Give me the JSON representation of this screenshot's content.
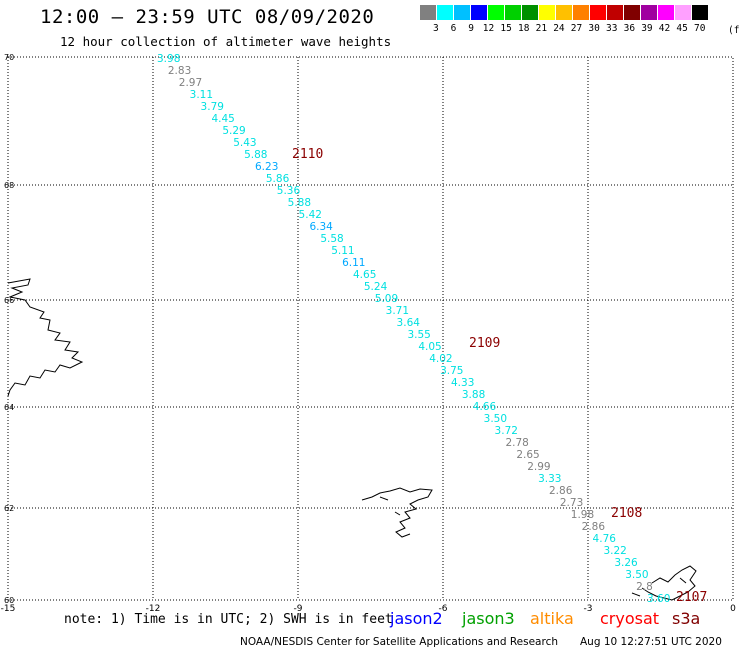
{
  "header": {
    "title": "12:00 — 23:59 UTC 08/09/2020",
    "subtitle": "12 hour collection of altimeter wave heights"
  },
  "legend": {
    "colors": [
      "#808080",
      "#00ffff",
      "#00c0ff",
      "#0000ff",
      "#00ff00",
      "#00d000",
      "#009000",
      "#ffff00",
      "#ffc000",
      "#ff8000",
      "#ff0000",
      "#c00000",
      "#800000",
      "#a000a0",
      "#ff00ff",
      "#ffa0ff",
      "#000000"
    ],
    "labels": [
      "3",
      "6",
      "9",
      "12",
      "15",
      "18",
      "21",
      "24",
      "27",
      "30",
      "33",
      "36",
      "39",
      "42",
      "45",
      "70"
    ],
    "unit": "(ft)"
  },
  "map": {
    "x_ticks": [
      "-15",
      "-12",
      "-9",
      "-6",
      "-3",
      "0"
    ],
    "y_ticks": [
      "70",
      "68",
      "66",
      "64",
      "62",
      "60"
    ]
  },
  "chart_data": {
    "type": "scatter",
    "x_range": [
      -15,
      0
    ],
    "y_range": [
      60,
      70
    ],
    "time_labels": [
      {
        "text": "2110",
        "lon": -9.1,
        "lat": 67.95
      },
      {
        "text": "2109",
        "lon": -5.7,
        "lat": 64.9
      },
      {
        "text": "2108",
        "lon": -2.5,
        "lat": 61.95
      },
      {
        "text": "2107",
        "lon": -1.1,
        "lat": 60.1
      }
    ],
    "points": [
      {
        "v": "3.98",
        "lon": -12.05,
        "lat": 69.95,
        "c": "#00e0e0"
      },
      {
        "v": "2.83",
        "lon": -11.75,
        "lat": 69.75,
        "c": "#808080"
      },
      {
        "v": "2.97",
        "lon": -11.45,
        "lat": 69.5,
        "c": "#808080"
      },
      {
        "v": "3.11",
        "lon": -11.15,
        "lat": 69.25,
        "c": "#00e0e0"
      },
      {
        "v": "3.79",
        "lon": -10.85,
        "lat": 69.0,
        "c": "#00e0e0"
      },
      {
        "v": "4.45",
        "lon": -10.55,
        "lat": 68.75,
        "c": "#00e0e0"
      },
      {
        "v": "5.29",
        "lon": -10.25,
        "lat": 68.5,
        "c": "#00e0e0"
      },
      {
        "v": "5.43",
        "lon": -9.95,
        "lat": 68.25,
        "c": "#00e0e0"
      },
      {
        "v": "5.88",
        "lon": -9.65,
        "lat": 68.0,
        "c": "#00e0e0"
      },
      {
        "v": "6.23",
        "lon": -9.35,
        "lat": 67.75,
        "c": "#00a8ff"
      },
      {
        "v": "5.86",
        "lon": -9.05,
        "lat": 67.5,
        "c": "#00e0e0"
      },
      {
        "v": "5.36",
        "lon": -8.75,
        "lat": 67.25,
        "c": "#00e0e0"
      },
      {
        "v": "5.88",
        "lon": -8.45,
        "lat": 67.0,
        "c": "#00e0e0"
      },
      {
        "v": "5.42",
        "lon": -8.15,
        "lat": 66.75,
        "c": "#00e0e0"
      },
      {
        "v": "6.34",
        "lon": -7.85,
        "lat": 66.5,
        "c": "#00a8ff"
      },
      {
        "v": "5.58",
        "lon": -7.55,
        "lat": 66.25,
        "c": "#00e0e0"
      },
      {
        "v": "5.11",
        "lon": -7.25,
        "lat": 66.0,
        "c": "#00e0e0"
      },
      {
        "v": "6.11",
        "lon": -6.95,
        "lat": 65.75,
        "c": "#00a8ff"
      },
      {
        "v": "4.65",
        "lon": -6.65,
        "lat": 65.5,
        "c": "#00e0e0"
      },
      {
        "v": "5.24",
        "lon": -6.35,
        "lat": 65.25,
        "c": "#00e0e0"
      },
      {
        "v": "5.09",
        "lon": -6.05,
        "lat": 65.0,
        "c": "#00e0e0"
      },
      {
        "v": "3.71",
        "lon": -5.75,
        "lat": 64.75,
        "c": "#00e0e0"
      },
      {
        "v": "3.64",
        "lon": -5.45,
        "lat": 64.5,
        "c": "#00e0e0"
      },
      {
        "v": "3.55",
        "lon": -5.15,
        "lat": 64.25,
        "c": "#00e0e0"
      },
      {
        "v": "4.05",
        "lon": -4.85,
        "lat": 64.0,
        "c": "#00e0e0"
      },
      {
        "v": "4.02",
        "lon": -4.55,
        "lat": 63.75,
        "c": "#00e0e0"
      },
      {
        "v": "3.75",
        "lon": -4.25,
        "lat": 63.5,
        "c": "#00e0e0"
      },
      {
        "v": "4.33",
        "lon": -3.95,
        "lat": 63.25,
        "c": "#00e0e0"
      },
      {
        "v": "3.88",
        "lon": -3.65,
        "lat": 63.0,
        "c": "#00e0e0"
      },
      {
        "v": "4.66",
        "lon": -3.35,
        "lat": 62.75,
        "c": "#00e0e0"
      },
      {
        "v": "3.50",
        "lon": -3.05,
        "lat": 62.5,
        "c": "#00e0e0"
      },
      {
        "v": "3.72",
        "lon": -2.75,
        "lat": 62.25,
        "c": "#00e0e0"
      },
      {
        "v": "2.78",
        "lon": -2.45,
        "lat": 62.0,
        "c": "#808080"
      },
      {
        "v": "2.65",
        "lon": -2.15,
        "lat": 61.75,
        "c": "#808080"
      },
      {
        "v": "2.99",
        "lon": -1.85,
        "lat": 61.5,
        "c": "#808080"
      },
      {
        "v": "3.33",
        "lon": -1.55,
        "lat": 61.25,
        "c": "#00e0e0"
      },
      {
        "v": "2.86",
        "lon": -1.25,
        "lat": 61.0,
        "c": "#808080"
      },
      {
        "v": "2.73",
        "lon": -0.95,
        "lat": 60.75,
        "c": "#808080"
      },
      {
        "v": "1.98",
        "lon": -0.65,
        "lat": 60.5,
        "c": "#808080"
      },
      {
        "v": "2.86",
        "lon": -0.35,
        "lat": 60.25,
        "c": "#808080"
      },
      {
        "v": "4.76",
        "lon": -0.05,
        "lat": 60.0,
        "c": "#00e0e0"
      },
      {
        "v": "3.22",
        "lon": 0.25,
        "lat": 59.75,
        "c": "#00e0e0"
      },
      {
        "v": "3.26",
        "lon": 0.55,
        "lat": 59.5,
        "c": "#00e0e0"
      },
      {
        "v": "3.50",
        "lon": 0.85,
        "lat": 59.25,
        "c": "#00e0e0"
      },
      {
        "v": "2.8",
        "lon": 1.15,
        "lat": 59.0,
        "c": "#808080"
      },
      {
        "v": "3.60",
        "lon": 1.45,
        "lat": 58.75,
        "c": "#00e0e0"
      }
    ]
  },
  "footer": {
    "note": "note:  1) Time is in UTC;  2) SWH is in feet",
    "satellites": [
      {
        "name": "jason2",
        "color": "#0000ff"
      },
      {
        "name": "jason3",
        "color": "#00a000"
      },
      {
        "name": "altika",
        "color": "#ff8c00"
      },
      {
        "name": "cryosat",
        "color": "#ff0000"
      },
      {
        "name": "s3a",
        "color": "#800000"
      }
    ],
    "credit": "NOAA/NESDIS Center for Satellite Applications and Research",
    "timestamp": "Aug 10 12:27:51 UTC 2020"
  }
}
